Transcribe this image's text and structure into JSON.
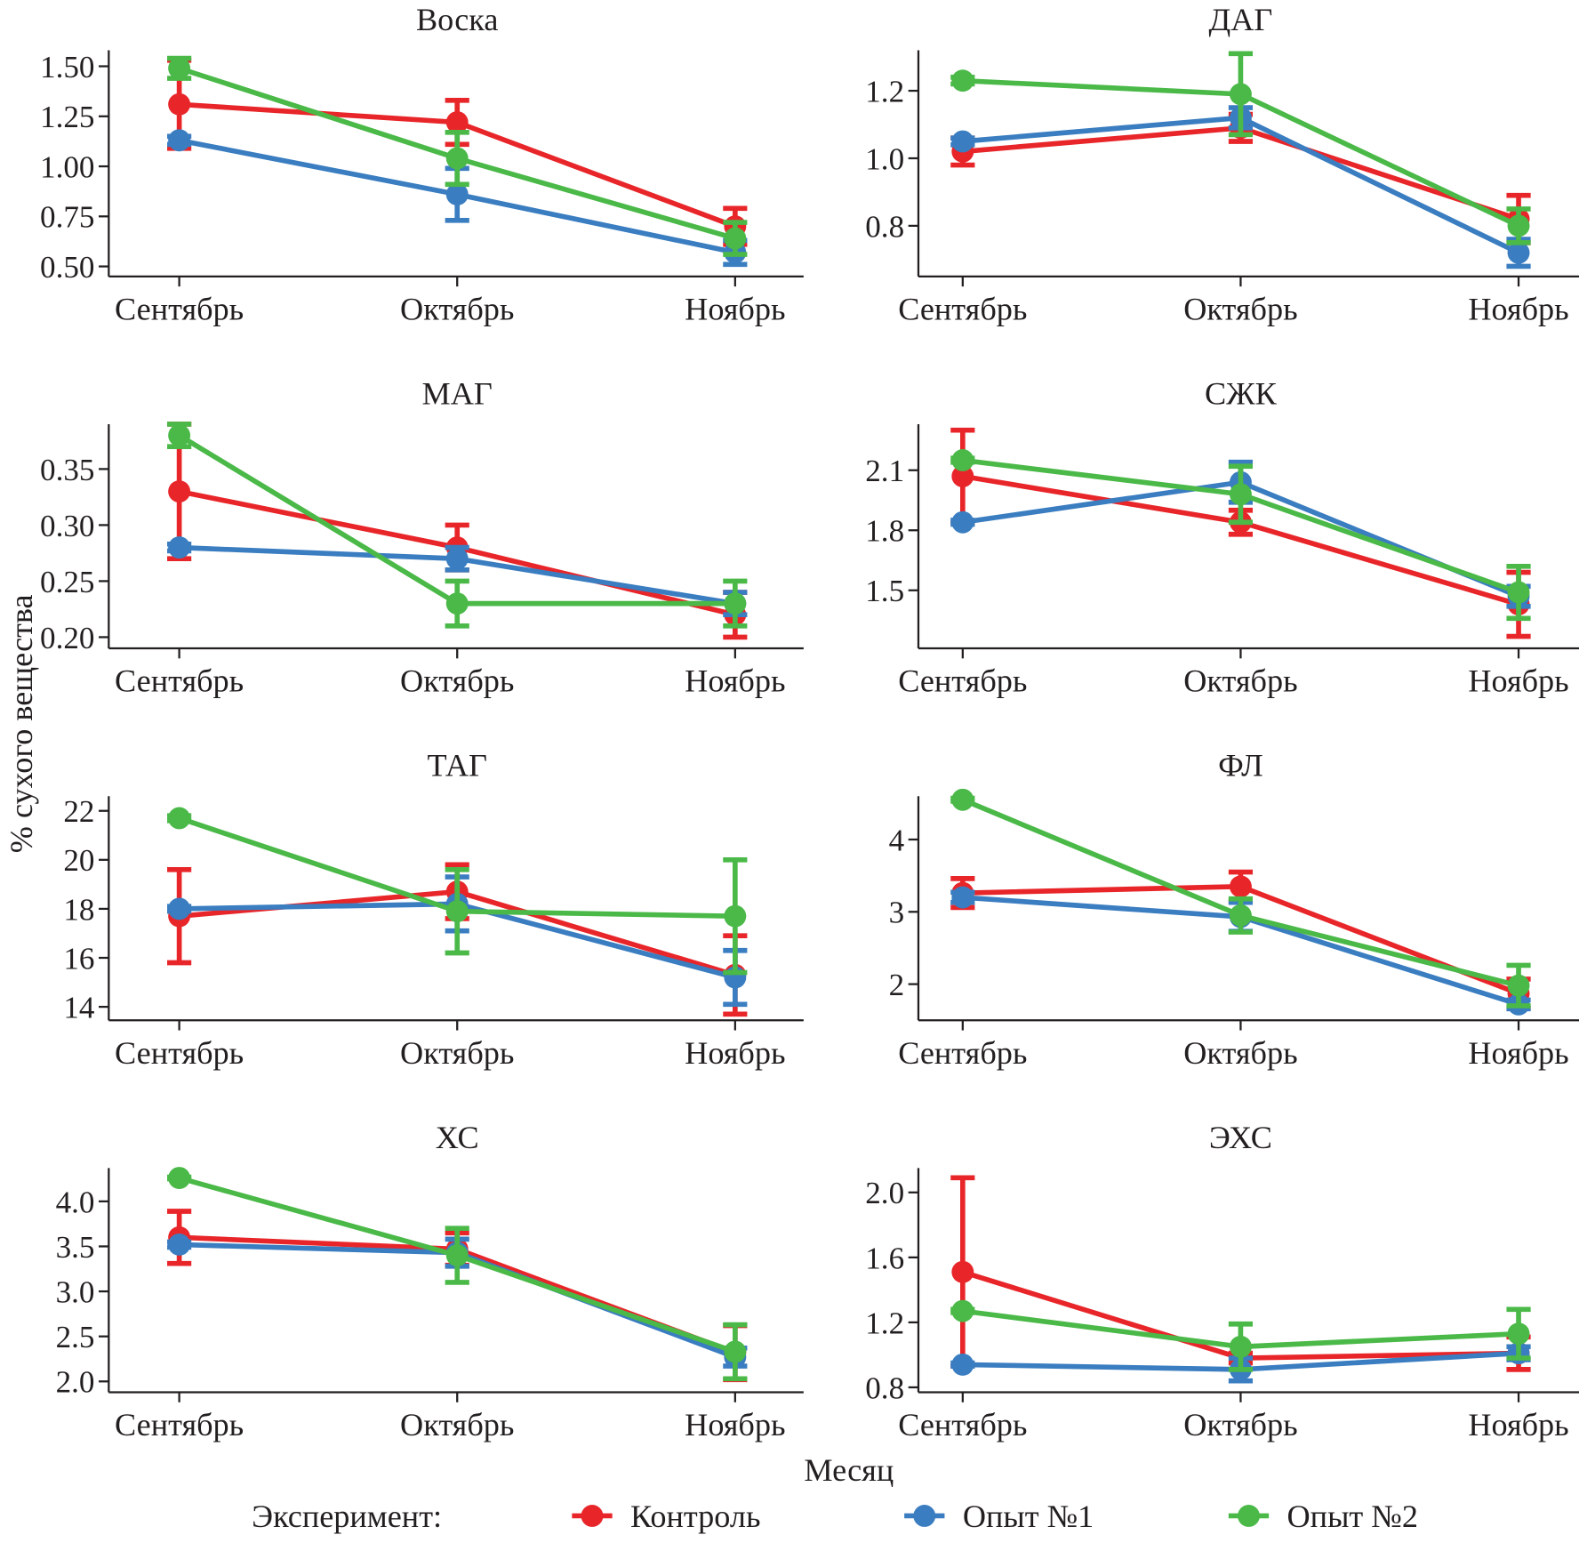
{
  "figure": {
    "ylabel": "% сухого вещества",
    "xlabel": "Месяц",
    "legend_title": "Эксперимент:"
  },
  "chart_data": [
    {
      "type": "line",
      "title": "Воска",
      "categories": [
        "Сентябрь",
        "Октябрь",
        "Ноябрь"
      ],
      "ylim": [
        0.45,
        1.58
      ],
      "yticks": [
        {
          "value": 0.5,
          "label": "0.50"
        },
        0.75,
        {
          "value": 1,
          "label": "1.00"
        },
        1.25,
        {
          "value": 1.5,
          "label": "1.50"
        }
      ],
      "series": [
        {
          "name": "Контроль",
          "color": "#e8262a",
          "values": [
            1.31,
            1.22,
            0.7
          ],
          "errors": [
            0.22,
            0.11,
            0.09
          ]
        },
        {
          "name": "Опыт №1",
          "color": "#3a7dc0",
          "values": [
            1.13,
            0.86,
            0.57
          ],
          "errors": [
            0.02,
            0.13,
            0.06
          ]
        },
        {
          "name": "Опыт №2",
          "color": "#4ab948",
          "values": [
            1.49,
            1.04,
            0.64
          ],
          "errors": [
            0.05,
            0.13,
            0.08
          ]
        }
      ]
    },
    {
      "type": "line",
      "title": "ДАГ",
      "categories": [
        "Сентябрь",
        "Октябрь",
        "Ноябрь"
      ],
      "ylim": [
        0.65,
        1.32
      ],
      "yticks": [
        0.8,
        {
          "value": 1,
          "label": "1.0"
        },
        1.2
      ],
      "series": [
        {
          "name": "Контроль",
          "color": "#e8262a",
          "values": [
            1.02,
            1.09,
            0.82
          ],
          "errors": [
            0.04,
            0.04,
            0.07
          ]
        },
        {
          "name": "Опыт №1",
          "color": "#3a7dc0",
          "values": [
            1.05,
            1.12,
            0.72
          ],
          "errors": [
            0.01,
            0.03,
            0.04
          ]
        },
        {
          "name": "Опыт №2",
          "color": "#4ab948",
          "values": [
            1.23,
            1.19,
            0.8
          ],
          "errors": [
            0.01,
            0.12,
            0.05
          ]
        }
      ]
    },
    {
      "type": "line",
      "title": "МАГ",
      "categories": [
        "Сентябрь",
        "Октябрь",
        "Ноябрь"
      ],
      "ylim": [
        0.19,
        0.39
      ],
      "yticks": [
        {
          "value": 0.2,
          "label": "0.20"
        },
        0.25,
        {
          "value": 0.3,
          "label": "0.30"
        },
        0.35
      ],
      "series": [
        {
          "name": "Контроль",
          "color": "#e8262a",
          "values": [
            0.33,
            0.28,
            0.22
          ],
          "errors": [
            0.06,
            0.02,
            0.02
          ]
        },
        {
          "name": "Опыт №1",
          "color": "#3a7dc0",
          "values": [
            0.28,
            0.27,
            0.23
          ],
          "errors": [
            0.003,
            0.01,
            0.01
          ]
        },
        {
          "name": "Опыт №2",
          "color": "#4ab948",
          "values": [
            0.38,
            0.23,
            0.23
          ],
          "errors": [
            0.01,
            0.02,
            0.02
          ]
        }
      ]
    },
    {
      "type": "line",
      "title": "СЖК",
      "categories": [
        "Сентябрь",
        "Октябрь",
        "Ноябрь"
      ],
      "ylim": [
        1.21,
        2.33
      ],
      "yticks": [
        1.5,
        1.8,
        2.1
      ],
      "series": [
        {
          "name": "Контроль",
          "color": "#e8262a",
          "values": [
            2.07,
            1.84,
            1.43
          ],
          "errors": [
            0.23,
            0.06,
            0.16
          ]
        },
        {
          "name": "Опыт №1",
          "color": "#3a7dc0",
          "values": [
            1.84,
            2.04,
            1.47
          ],
          "errors": [
            0.01,
            0.1,
            0.05
          ]
        },
        {
          "name": "Опыт №2",
          "color": "#4ab948",
          "values": [
            2.15,
            1.98,
            1.49
          ],
          "errors": [
            0.01,
            0.14,
            0.13
          ]
        }
      ]
    },
    {
      "type": "line",
      "title": "ТАГ",
      "categories": [
        "Сентябрь",
        "Октябрь",
        "Ноябрь"
      ],
      "ylim": [
        13.45,
        22.6
      ],
      "yticks": [
        14,
        16,
        18,
        20,
        22
      ],
      "series": [
        {
          "name": "Контроль",
          "color": "#e8262a",
          "values": [
            17.7,
            18.7,
            15.3
          ],
          "errors": [
            1.9,
            1.1,
            1.6
          ]
        },
        {
          "name": "Опыт №1",
          "color": "#3a7dc0",
          "values": [
            18.0,
            18.2,
            15.2
          ],
          "errors": [
            0.1,
            1.1,
            1.1
          ]
        },
        {
          "name": "Опыт №2",
          "color": "#4ab948",
          "values": [
            21.7,
            17.9,
            17.7
          ],
          "errors": [
            0.1,
            1.7,
            2.3
          ]
        }
      ]
    },
    {
      "type": "line",
      "title": "ФЛ",
      "categories": [
        "Сентябрь",
        "Октябрь",
        "Ноябрь"
      ],
      "ylim": [
        1.5,
        4.6
      ],
      "yticks": [
        2,
        3,
        4
      ],
      "series": [
        {
          "name": "Контроль",
          "color": "#e8262a",
          "values": [
            3.26,
            3.35,
            1.87
          ],
          "errors": [
            0.2,
            0.2,
            0.2
          ]
        },
        {
          "name": "Опыт №1",
          "color": "#3a7dc0",
          "values": [
            3.2,
            2.93,
            1.72
          ],
          "errors": [
            0.07,
            0.2,
            0.06
          ]
        },
        {
          "name": "Опыт №2",
          "color": "#4ab948",
          "values": [
            4.55,
            2.95,
            1.98
          ],
          "errors": [
            0.02,
            0.23,
            0.28
          ]
        }
      ]
    },
    {
      "type": "line",
      "title": "ХС",
      "categories": [
        "Сентябрь",
        "Октябрь",
        "Ноябрь"
      ],
      "ylim": [
        1.88,
        4.37
      ],
      "yticks": [
        {
          "value": 2,
          "label": "2.0"
        },
        2.5,
        {
          "value": 3,
          "label": "3.0"
        },
        3.5,
        {
          "value": 4,
          "label": "4.0"
        }
      ],
      "series": [
        {
          "name": "Контроль",
          "color": "#e8262a",
          "values": [
            3.6,
            3.47,
            2.32
          ],
          "errors": [
            0.29,
            0.18,
            0.3
          ]
        },
        {
          "name": "Опыт №1",
          "color": "#3a7dc0",
          "values": [
            3.52,
            3.43,
            2.27
          ],
          "errors": [
            0.03,
            0.15,
            0.1
          ]
        },
        {
          "name": "Опыт №2",
          "color": "#4ab948",
          "values": [
            4.26,
            3.4,
            2.33
          ],
          "errors": [
            0.01,
            0.3,
            0.3
          ]
        }
      ]
    },
    {
      "type": "line",
      "title": "ЭХС",
      "categories": [
        "Сентябрь",
        "Октябрь",
        "Ноябрь"
      ],
      "ylim": [
        0.77,
        2.15
      ],
      "yticks": [
        0.8,
        1.2,
        1.6,
        {
          "value": 2,
          "label": "2.0"
        }
      ],
      "series": [
        {
          "name": "Контроль",
          "color": "#e8262a",
          "values": [
            1.51,
            0.98,
            1.01
          ],
          "errors": [
            0.58,
            0.03,
            0.1
          ]
        },
        {
          "name": "Опыт №1",
          "color": "#3a7dc0",
          "values": [
            0.94,
            0.91,
            1.01
          ],
          "errors": [
            0.01,
            0.07,
            0.04
          ]
        },
        {
          "name": "Опыт №2",
          "color": "#4ab948",
          "values": [
            1.27,
            1.05,
            1.13
          ],
          "errors": [
            0.01,
            0.14,
            0.15
          ]
        }
      ]
    }
  ]
}
